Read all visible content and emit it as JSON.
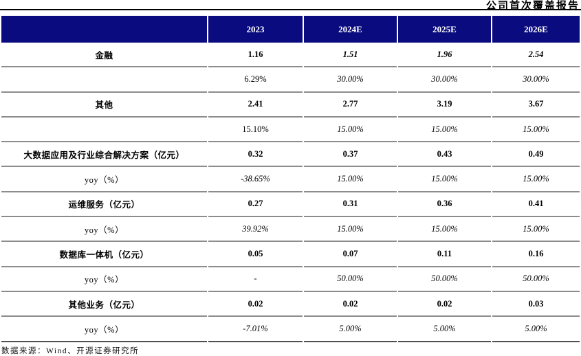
{
  "page": {
    "report_tag": "公司首次覆盖报告",
    "source_note": "数据来源：Wind、开源证券研究所"
  },
  "colors": {
    "header_bg": "#0B0B80",
    "header_text": "#FFFFFF",
    "row_line": "#8C8C8C",
    "table_bottom_line": "#4F4F4F",
    "title_rule": "#000000"
  },
  "table": {
    "columns": [
      {
        "label": ""
      },
      {
        "label": "2023"
      },
      {
        "label": "2024E"
      },
      {
        "label": "2025E"
      },
      {
        "label": "2026E"
      }
    ],
    "rows": [
      {
        "label": "金融",
        "label_bold": true,
        "cells": [
          {
            "text": "1.16",
            "bold": true
          },
          {
            "text": "1.51",
            "bold": true,
            "italic": true
          },
          {
            "text": "1.96",
            "bold": true,
            "italic": true
          },
          {
            "text": "2.54",
            "bold": true,
            "italic": true
          }
        ]
      },
      {
        "label": "",
        "cells": [
          {
            "text": "6.29%"
          },
          {
            "text": "30.00%",
            "italic": true
          },
          {
            "text": "30.00%",
            "italic": true
          },
          {
            "text": "30.00%",
            "italic": true
          }
        ]
      },
      {
        "label": "其他",
        "label_bold": true,
        "cells": [
          {
            "text": "2.41",
            "bold": true
          },
          {
            "text": "2.77",
            "bold": true
          },
          {
            "text": "3.19",
            "bold": true
          },
          {
            "text": "3.67",
            "bold": true
          }
        ]
      },
      {
        "label": "",
        "cells": [
          {
            "text": "15.10%"
          },
          {
            "text": "15.00%",
            "italic": true
          },
          {
            "text": "15.00%",
            "italic": true
          },
          {
            "text": "15.00%",
            "italic": true
          }
        ]
      },
      {
        "label": "大数据应用及行业综合解决方案（亿元）",
        "label_bold": true,
        "cells": [
          {
            "text": "0.32",
            "bold": true
          },
          {
            "text": "0.37",
            "bold": true
          },
          {
            "text": "0.43",
            "bold": true
          },
          {
            "text": "0.49",
            "bold": true
          }
        ]
      },
      {
        "label": "yoy（%）",
        "cells": [
          {
            "text": "-38.65%",
            "italic": true
          },
          {
            "text": "15.00%",
            "italic": true
          },
          {
            "text": "15.00%",
            "italic": true
          },
          {
            "text": "15.00%",
            "italic": true
          }
        ]
      },
      {
        "label": "运维服务（亿元）",
        "label_bold": true,
        "cells": [
          {
            "text": "0.27",
            "bold": true
          },
          {
            "text": "0.31",
            "bold": true
          },
          {
            "text": "0.36",
            "bold": true
          },
          {
            "text": "0.41",
            "bold": true
          }
        ]
      },
      {
        "label": "yoy（%）",
        "cells": [
          {
            "text": "39.92%",
            "italic": true
          },
          {
            "text": "15.00%",
            "italic": true
          },
          {
            "text": "15.00%",
            "italic": true
          },
          {
            "text": "15.00%",
            "italic": true
          }
        ]
      },
      {
        "label": "数据库一体机（亿元）",
        "label_bold": true,
        "cells": [
          {
            "text": "0.05",
            "bold": true
          },
          {
            "text": "0.07",
            "bold": true
          },
          {
            "text": "0.11",
            "bold": true
          },
          {
            "text": "0.16",
            "bold": true
          }
        ]
      },
      {
        "label": "yoy（%）",
        "cells": [
          {
            "text": "-"
          },
          {
            "text": "50.00%",
            "italic": true
          },
          {
            "text": "50.00%",
            "italic": true
          },
          {
            "text": "50.00%",
            "italic": true
          }
        ]
      },
      {
        "label": "其他业务（亿元）",
        "label_bold": true,
        "cells": [
          {
            "text": "0.02",
            "bold": true
          },
          {
            "text": "0.02",
            "bold": true
          },
          {
            "text": "0.02",
            "bold": true
          },
          {
            "text": "0.03",
            "bold": true
          }
        ]
      },
      {
        "label": "yoy（%）",
        "cells": [
          {
            "text": "-7.01%",
            "italic": true
          },
          {
            "text": "5.00%",
            "italic": true
          },
          {
            "text": "5.00%",
            "italic": true
          },
          {
            "text": "5.00%",
            "italic": true
          }
        ]
      }
    ]
  }
}
